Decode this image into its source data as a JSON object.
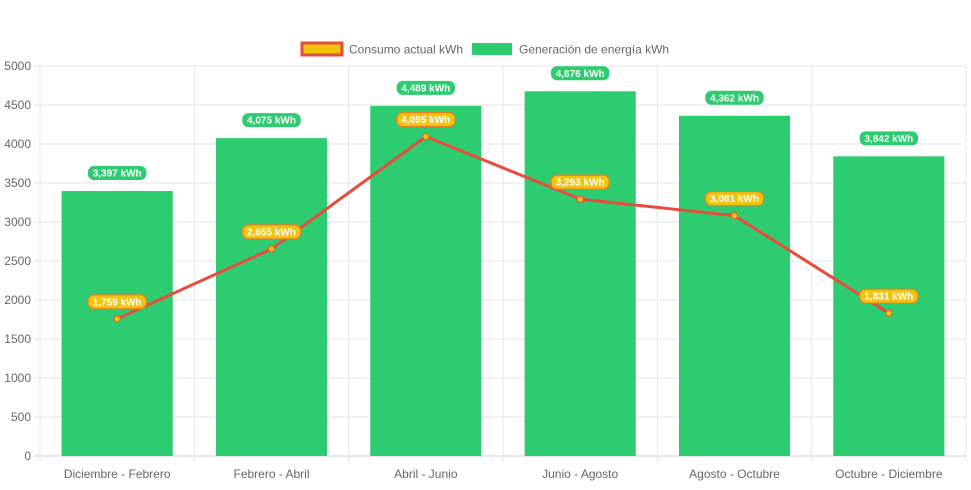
{
  "chart_data": {
    "type": "bar",
    "categories": [
      "Diciembre - Febrero",
      "Febrero - Abril",
      "Abril - Junio",
      "Junio - Agosto",
      "Agosto - Octubre",
      "Octubre - Diciembre"
    ],
    "series": [
      {
        "name": "Consumo actual kWh",
        "type": "line",
        "color": "#e74c3c",
        "point_color": "#f1c40f",
        "values": [
          1759,
          2655,
          4095,
          3293,
          3081,
          1831
        ],
        "labels": [
          "1,759 kWh",
          "2,655 kWh",
          "4,095 kWh",
          "3,293 kWh",
          "3,081 kWh",
          "1,831 kWh"
        ]
      },
      {
        "name": "Generación de energía kWh",
        "type": "bar",
        "color": "#2ecc71",
        "values": [
          3397,
          4075,
          4489,
          4676,
          4362,
          3842
        ],
        "labels": [
          "3,397 kWh",
          "4,075 kWh",
          "4,489 kWh",
          "4,676 kWh",
          "4,362 kWh",
          "3,842 kWh"
        ]
      }
    ],
    "ylim": [
      0,
      5000
    ],
    "yticks": [
      0,
      500,
      1000,
      1500,
      2000,
      2500,
      3000,
      3500,
      4000,
      4500,
      5000
    ],
    "grid": true,
    "legend_position": "top"
  }
}
